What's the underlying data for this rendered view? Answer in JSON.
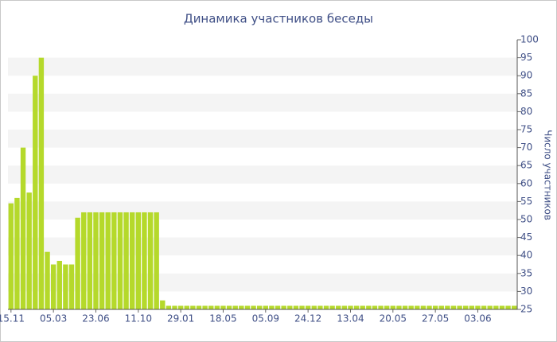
{
  "chart_data": {
    "type": "bar",
    "title": "Динамика участников беседы",
    "y_label": "Число участников",
    "categories": [
      "15.11",
      null,
      null,
      null,
      null,
      null,
      null,
      "05.03",
      null,
      null,
      null,
      null,
      null,
      null,
      "23.06",
      null,
      null,
      null,
      null,
      null,
      null,
      "11.10",
      null,
      null,
      null,
      null,
      null,
      null,
      "29.01",
      null,
      null,
      null,
      null,
      null,
      null,
      "18.05",
      null,
      null,
      null,
      null,
      null,
      null,
      "05.09",
      null,
      null,
      null,
      null,
      null,
      null,
      "24.12",
      null,
      null,
      null,
      null,
      null,
      null,
      "13.04",
      null,
      null,
      null,
      null,
      null,
      null,
      "20.05",
      null,
      null,
      null,
      null,
      null,
      null,
      "27.05",
      null,
      null,
      null,
      null,
      null,
      null,
      "03.06",
      null,
      null,
      null,
      null,
      null,
      null
    ],
    "values": [
      54.5,
      56,
      70,
      57.5,
      90,
      95,
      41,
      37.5,
      38.5,
      37.5,
      37.5,
      50.5,
      52,
      52,
      52,
      52,
      52,
      52,
      52,
      52,
      52,
      52,
      52,
      52,
      52,
      27.5,
      26,
      26,
      26,
      26,
      26,
      26,
      26,
      26,
      26,
      26,
      26,
      26,
      26,
      26,
      26,
      26,
      26,
      26,
      26,
      26,
      26,
      26,
      26,
      26,
      26,
      26,
      26,
      26,
      26,
      26,
      26,
      26,
      26,
      26,
      26,
      26,
      26,
      26,
      26,
      26,
      26,
      26,
      26,
      26,
      26,
      26,
      26,
      26,
      26,
      26,
      26,
      26,
      26,
      26,
      26,
      26,
      26,
      26
    ],
    "color": "#b5d92b",
    "ylim": [
      25,
      100
    ],
    "yticks": [
      25,
      30,
      35,
      40,
      45,
      50,
      55,
      60,
      65,
      70,
      75,
      80,
      85,
      90,
      95,
      100
    ],
    "grid": true
  }
}
